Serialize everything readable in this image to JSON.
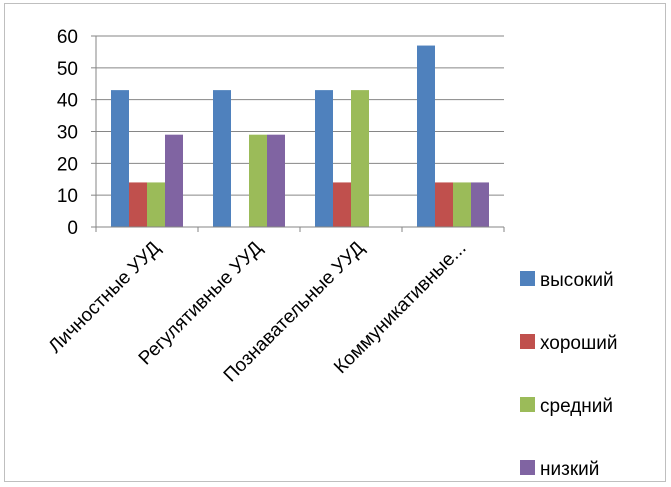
{
  "chart_data": {
    "type": "bar",
    "categories": [
      "Личностные УУД",
      "Регулятивные УУД",
      "Познавательные УУД",
      "Коммуникативные..."
    ],
    "series": [
      {
        "name": "высокий",
        "color": "#4F81BD",
        "values": [
          43,
          43,
          43,
          57
        ]
      },
      {
        "name": "хороший",
        "color": "#C0504D",
        "values": [
          14,
          0,
          14,
          14
        ]
      },
      {
        "name": "средний",
        "color": "#9BBB59",
        "values": [
          14,
          29,
          43,
          14
        ]
      },
      {
        "name": "низкий",
        "color": "#8064A2",
        "values": [
          29,
          29,
          0,
          14
        ]
      }
    ],
    "yticks": [
      "0",
      "10",
      "20",
      "30",
      "40",
      "50",
      "60"
    ],
    "ylim": [
      0,
      60
    ],
    "grid": true,
    "legend_position": "right"
  }
}
